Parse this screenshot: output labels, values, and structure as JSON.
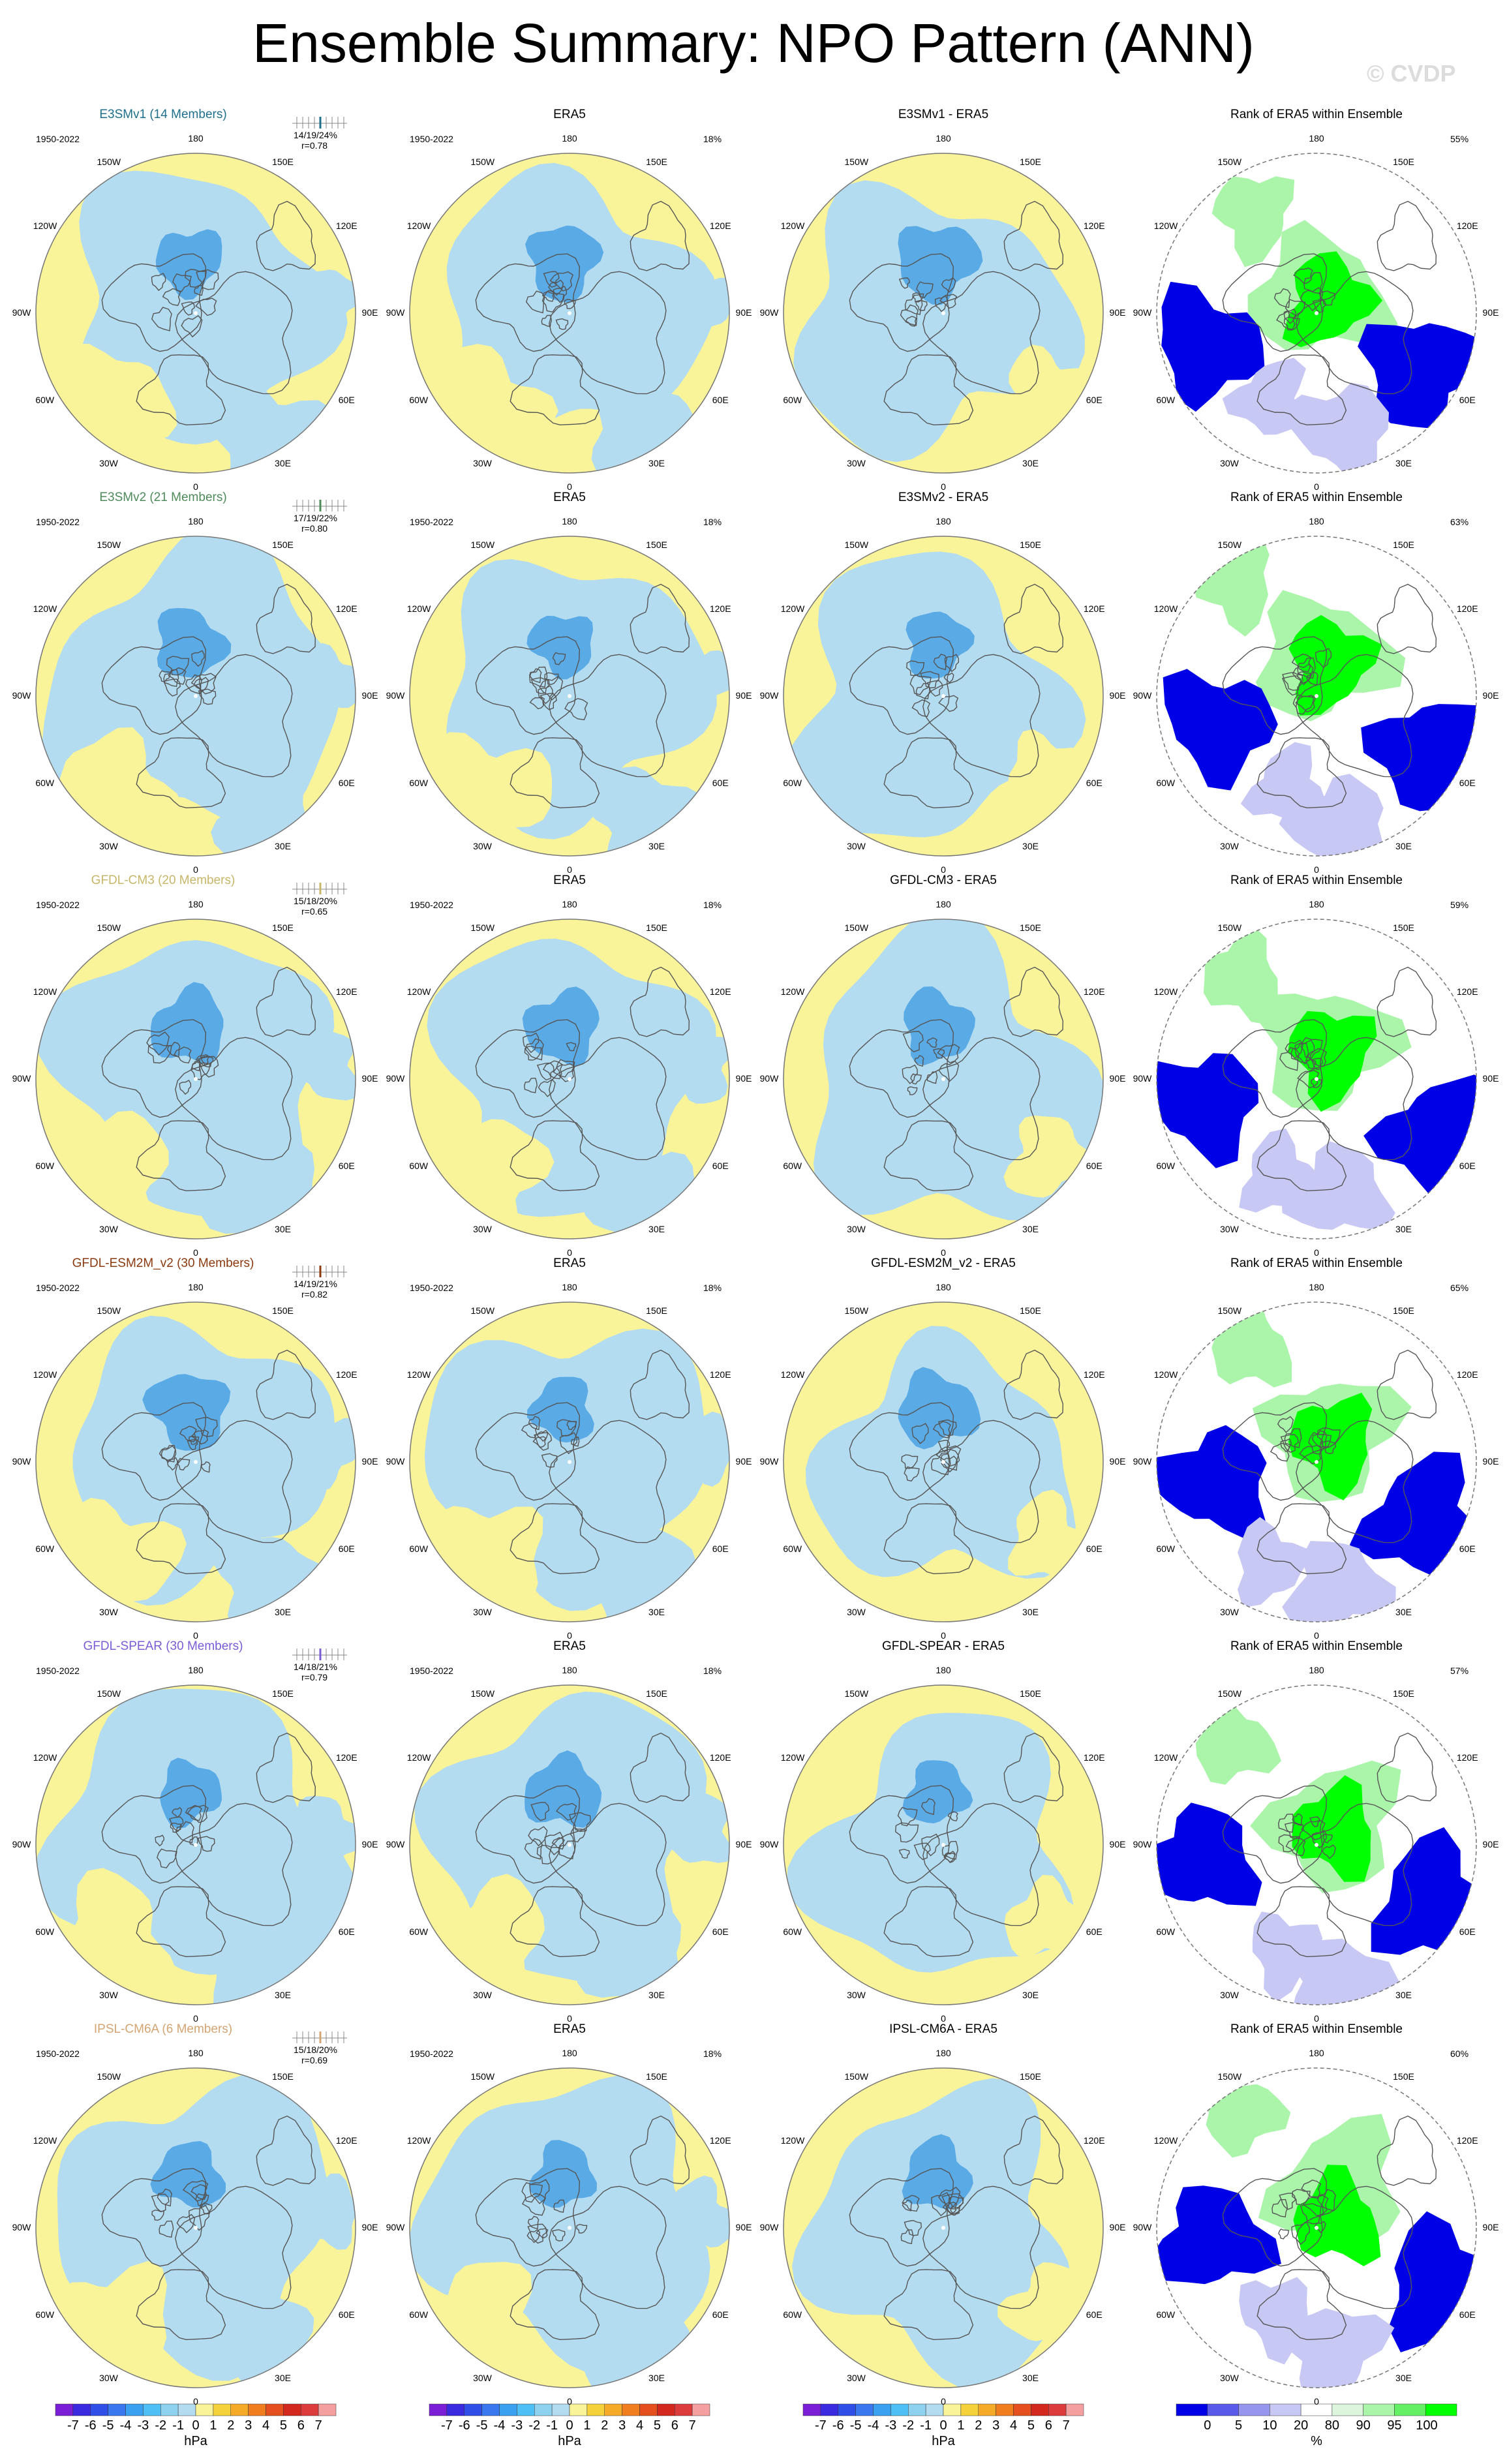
{
  "title": "Ensemble Summary: NPO Pattern (ANN)",
  "watermark": "© CVDP",
  "period": "1950-2022",
  "lon_labels": [
    "180",
    "150E",
    "120E",
    "90E",
    "60E",
    "30E",
    "0",
    "30W",
    "60W",
    "90W",
    "120W",
    "150W"
  ],
  "era5_title": "ERA5",
  "rank_title": "Rank of ERA5 within Ensemble",
  "era5_pct": "18%",
  "colors": {
    "pos": "#f9f39a",
    "neg": "#b4dcf0",
    "neg_strong": "#5aaae6",
    "rank_hi": "#00ff00",
    "rank_mid": "#aaf5aa",
    "rank_lo": "#0000e6",
    "rank_lo2": "#c8c8f5",
    "coast": "#555555"
  },
  "rows": [
    {
      "model": "E3SMv1 (14 Members)",
      "color": "#1f6f8b",
      "stats": "14/19/24%",
      "r": "r=0.78",
      "diff_title": "E3SMv1 - ERA5",
      "rank_pct": "55%"
    },
    {
      "model": "E3SMv2 (21 Members)",
      "color": "#4f8a5b",
      "stats": "17/19/22%",
      "r": "r=0.80",
      "diff_title": "E3SMv2 - ERA5",
      "rank_pct": "63%"
    },
    {
      "model": "GFDL-CM3 (20 Members)",
      "color": "#c8b66a",
      "stats": "15/18/20%",
      "r": "r=0.65",
      "diff_title": "GFDL-CM3 - ERA5",
      "rank_pct": "59%"
    },
    {
      "model": "GFDL-ESM2M_v2 (30 Members)",
      "color": "#8b3a0f",
      "stats": "14/19/21%",
      "r": "r=0.82",
      "diff_title": "GFDL-ESM2M_v2 - ERA5",
      "rank_pct": "65%"
    },
    {
      "model": "GFDL-SPEAR (30 Members)",
      "color": "#7b5cd6",
      "stats": "14/18/21%",
      "r": "r=0.79",
      "diff_title": "GFDL-SPEAR - ERA5",
      "rank_pct": "57%"
    },
    {
      "model": "IPSL-CM6A (6 Members)",
      "color": "#d4a574",
      "stats": "15/18/20%",
      "r": "r=0.69",
      "diff_title": "IPSL-CM6A - ERA5",
      "rank_pct": "60%"
    }
  ],
  "colorbar_hpa": {
    "ticks": [
      "-7",
      "-6",
      "-5",
      "-4",
      "-3",
      "-2",
      "-1",
      "0",
      "1",
      "2",
      "3",
      "4",
      "5",
      "6",
      "7"
    ],
    "unit": "hPa",
    "colors": [
      "#7a1fd6",
      "#3a2ae0",
      "#2f4fe6",
      "#3a78ef",
      "#3aa0f0",
      "#4fc0f5",
      "#8fd2f0",
      "#b4dcf0",
      "#f9f39a",
      "#f5d23c",
      "#f5aa28",
      "#f07d1e",
      "#e6501e",
      "#d2281e",
      "#dc3c3c",
      "#f5a0a0"
    ]
  },
  "colorbar_rank": {
    "ticks": [
      "0",
      "5",
      "10",
      "20",
      "80",
      "90",
      "95",
      "100"
    ],
    "unit": "%",
    "colors": [
      "#0000e6",
      "#5a5aea",
      "#9696ee",
      "#c8c8f5",
      "#ffffff",
      "#dcf5dc",
      "#aaf5aa",
      "#64f064",
      "#00ff00"
    ]
  }
}
